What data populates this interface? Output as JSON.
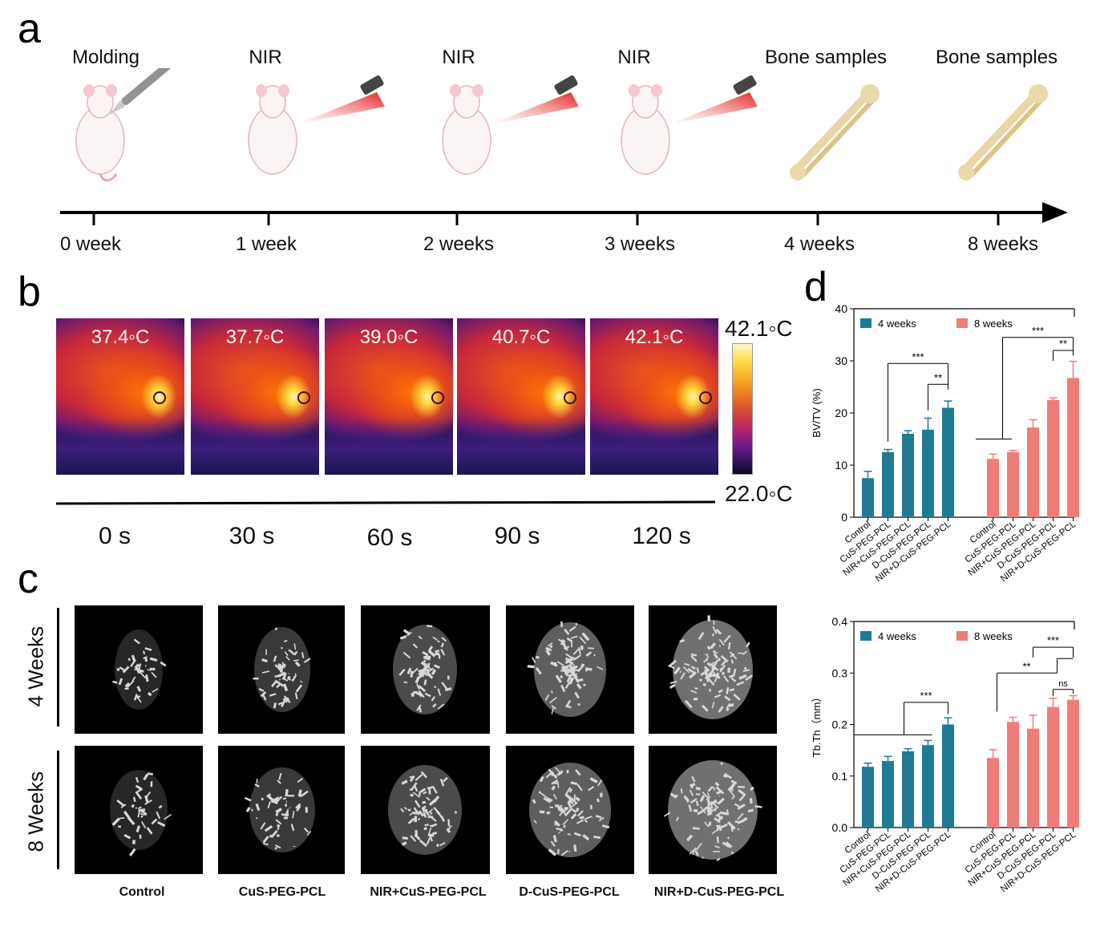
{
  "panel_a": {
    "letter": "a",
    "steps": [
      {
        "label": "Molding",
        "icon": "mouse-scalpel-icon"
      },
      {
        "label": "NIR",
        "icon": "mouse-laser-icon"
      },
      {
        "label": "NIR",
        "icon": "mouse-laser-icon"
      },
      {
        "label": "NIR",
        "icon": "mouse-laser-icon"
      },
      {
        "label": "Bone samples",
        "icon": "bone-icon"
      },
      {
        "label": "Bone samples",
        "icon": "bone-icon"
      }
    ],
    "ticks": [
      "0 week",
      "1 week",
      "2 weeks",
      "3 weeks",
      "4 weeks",
      "8 weeks"
    ]
  },
  "panel_b": {
    "letter": "b",
    "temps": [
      "37.4◦C",
      "37.7◦C",
      "39.0◦C",
      "40.7◦C",
      "42.1◦C"
    ],
    "times": [
      "0 s",
      "30 s",
      "60 s",
      "90 s",
      "120 s"
    ],
    "scale_max": "42.1◦C",
    "scale_min": "22.0◦C"
  },
  "panel_c": {
    "letter": "c",
    "rows": [
      "4 Weeks",
      "8 Weeks"
    ],
    "columns": [
      "Control",
      "CuS-PEG-PCL",
      "NIR+CuS-PEG-PCL",
      "D-CuS-PEG-PCL",
      "NIR+D-CuS-PEG-PCL"
    ]
  },
  "panel_d": {
    "letter": "d"
  },
  "chart_data": [
    {
      "type": "bar",
      "ylabel": "BV/TV (%)",
      "ylim": [
        0,
        40
      ],
      "yticks": [
        "0",
        "10",
        "20",
        "30",
        "40"
      ],
      "categories": [
        "Control",
        "CuS-PEG-PCL",
        "NIR+CuS-PEG-PCL",
        "D-CuS-PEG-PCL",
        "NIR+D-CuS-PEG-PCL"
      ],
      "legend_position": "top-left",
      "series": [
        {
          "name": "4 weeks",
          "color": "#1f7b93",
          "values": [
            7.5,
            12.5,
            16.0,
            16.8,
            21.0
          ],
          "errors": [
            1.3,
            0.5,
            0.6,
            2.2,
            1.3
          ]
        },
        {
          "name": "8 weeks",
          "color": "#ee7c79",
          "values": [
            11.2,
            12.5,
            17.2,
            22.5,
            26.7
          ],
          "errors": [
            0.9,
            0.3,
            1.5,
            0.4,
            3.2
          ]
        }
      ],
      "significance": [
        "***",
        "**",
        "***",
        "**"
      ]
    },
    {
      "type": "bar",
      "ylabel": "Tb.Th（mm）",
      "ylim": [
        0,
        0.4
      ],
      "yticks": [
        "0.0",
        "0.1",
        "0.2",
        "0.3",
        "0.4"
      ],
      "categories": [
        "Control",
        "CuS-PEG-PCL",
        "NIR+CuS-PEG-PCL",
        "D-CuS-PEG-PCL",
        "NIR+D-CuS-PEG-PCL"
      ],
      "legend_position": "top-left",
      "series": [
        {
          "name": "4 weeks",
          "color": "#1f7b93",
          "values": [
            0.118,
            0.129,
            0.148,
            0.16,
            0.2
          ],
          "errors": [
            0.007,
            0.009,
            0.005,
            0.009,
            0.013
          ]
        },
        {
          "name": "8 weeks",
          "color": "#ee7c79",
          "values": [
            0.135,
            0.205,
            0.192,
            0.234,
            0.248
          ],
          "errors": [
            0.016,
            0.009,
            0.026,
            0.017,
            0.008
          ]
        }
      ],
      "significance": [
        "***",
        "***",
        "**",
        "ns"
      ]
    }
  ]
}
